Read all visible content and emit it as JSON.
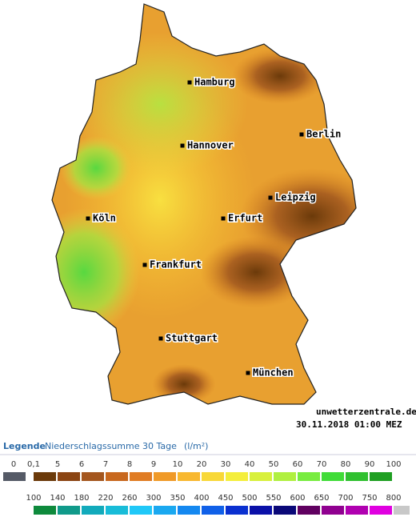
{
  "map": {
    "cities": [
      {
        "name": "Hamburg"
      },
      {
        "name": "Berlin"
      },
      {
        "name": "Hannover"
      },
      {
        "name": "Leipzig"
      },
      {
        "name": "Köln"
      },
      {
        "name": "Erfurt"
      },
      {
        "name": "Frankfurt"
      },
      {
        "name": "Stuttgart"
      },
      {
        "name": "München"
      }
    ],
    "watermark": "unwetterzentrale.de",
    "timestamp": "30.11.2018 01:00 MEZ"
  },
  "legend": {
    "title": "Legende",
    "subtitle": "Niederschlagssumme 30 Tage",
    "unit": "(l/m²)",
    "rows": [
      {
        "labels": [
          "0",
          "0,1",
          "5",
          "6",
          "7",
          "8",
          "9",
          "10",
          "20",
          "30",
          "40",
          "50",
          "60",
          "70",
          "80",
          "90",
          "100"
        ],
        "colors": [
          "#555a66",
          "#6b3a0a",
          "#8b4513",
          "#a4561e",
          "#c8681e",
          "#e07c24",
          "#f09a28",
          "#f8b830",
          "#f8d838",
          "#f4ee3c",
          "#d8f03c",
          "#b0f040",
          "#78ec40",
          "#40dc38",
          "#30c030",
          "#1f9f22"
        ]
      },
      {
        "labels": [
          "100",
          "140",
          "180",
          "220",
          "260",
          "300",
          "350",
          "400",
          "450",
          "500",
          "550",
          "600",
          "650",
          "700",
          "750",
          "800"
        ],
        "colors": [
          "#0e8a3c",
          "#109a8a",
          "#12aabb",
          "#18bcd8",
          "#20c8f8",
          "#1aa8f0",
          "#1488f0",
          "#1060e8",
          "#0a30d0",
          "#0a10a8",
          "#0a0878",
          "#600060",
          "#900090",
          "#b000b0",
          "#e000e0",
          "#c8c8c8"
        ]
      }
    ]
  }
}
